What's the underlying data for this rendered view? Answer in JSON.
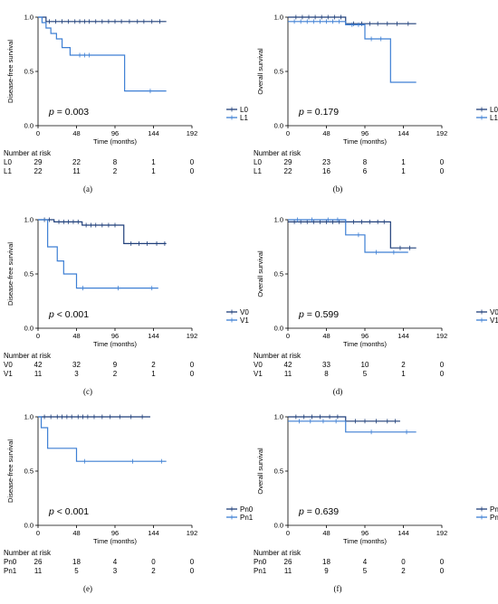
{
  "chart_data": [
    {
      "id": "a",
      "type": "line",
      "panel_label": "(a)",
      "ylabel": "Disease-free survival",
      "xlabel": "Time (months)",
      "xticks": [
        0,
        48,
        96,
        144,
        192
      ],
      "yticks": [
        0.0,
        0.5,
        1.0
      ],
      "xlim": [
        0,
        192
      ],
      "ylim": [
        0,
        1.0
      ],
      "p_prefix": "p",
      "p_text": " = 0.003",
      "legend_placement": "right",
      "series": [
        {
          "name": "L0",
          "color": "#1f3f7a",
          "x": [
            0,
            10,
            10,
            160
          ],
          "y": [
            1.0,
            1.0,
            0.96,
            0.96
          ],
          "censor_x": [
            14,
            22,
            30,
            38,
            46,
            52,
            58,
            64,
            72,
            80,
            88,
            96,
            104,
            114,
            124,
            132,
            142,
            152
          ]
        },
        {
          "name": "L1",
          "color": "#3d7fd4",
          "x": [
            0,
            5,
            5,
            10,
            10,
            16,
            16,
            23,
            23,
            30,
            30,
            40,
            40,
            48,
            48,
            108,
            108,
            160
          ],
          "y": [
            1.0,
            1.0,
            0.95,
            0.95,
            0.9,
            0.9,
            0.85,
            0.85,
            0.8,
            0.8,
            0.72,
            0.72,
            0.65,
            0.65,
            0.65,
            0.65,
            0.32,
            0.32
          ],
          "censor_x": [
            52,
            58,
            64,
            140
          ]
        }
      ],
      "risk": {
        "title": "Number at risk",
        "x": [
          0,
          48,
          96,
          144,
          192
        ],
        "rows": [
          {
            "label": "L0",
            "values": [
              "29",
              "22",
              "8",
              "1",
              "0"
            ]
          },
          {
            "label": "L1",
            "values": [
              "22",
              "11",
              "2",
              "1",
              "0"
            ]
          }
        ]
      }
    },
    {
      "id": "b",
      "type": "line",
      "panel_label": "(b)",
      "ylabel": "Overall survival",
      "xlabel": "Time (months)",
      "xticks": [
        0,
        48,
        96,
        144,
        192
      ],
      "yticks": [
        0.0,
        0.5,
        1.0
      ],
      "xlim": [
        0,
        192
      ],
      "ylim": [
        0,
        1.0
      ],
      "p_prefix": "p",
      "p_text": " = 0.179",
      "legend_placement": "right",
      "series": [
        {
          "name": "L0",
          "color": "#1f3f7a",
          "x": [
            0,
            72,
            72,
            160
          ],
          "y": [
            1.0,
            1.0,
            0.94,
            0.94
          ],
          "censor_x": [
            10,
            18,
            26,
            34,
            42,
            50,
            58,
            66,
            82,
            92,
            102,
            112,
            124,
            136,
            150
          ]
        },
        {
          "name": "L1",
          "color": "#3d7fd4",
          "x": [
            0,
            72,
            72,
            96,
            96,
            128,
            128,
            160
          ],
          "y": [
            0.96,
            0.96,
            0.93,
            0.93,
            0.8,
            0.8,
            0.4,
            0.4
          ],
          "censor_x": [
            8,
            16,
            24,
            32,
            40,
            48,
            56,
            64,
            80,
            88,
            104,
            116
          ]
        }
      ],
      "risk": {
        "title": "Number at risk",
        "x": [
          0,
          48,
          96,
          144,
          192
        ],
        "rows": [
          {
            "label": "L0",
            "values": [
              "29",
              "23",
              "8",
              "1",
              "0"
            ]
          },
          {
            "label": "L1",
            "values": [
              "22",
              "16",
              "6",
              "1",
              "0"
            ]
          }
        ]
      }
    },
    {
      "id": "c",
      "type": "line",
      "panel_label": "(c)",
      "ylabel": "Disease-free survival",
      "xlabel": "Time (months)",
      "xticks": [
        0,
        48,
        96,
        144,
        192
      ],
      "yticks": [
        0.0,
        0.5,
        1.0
      ],
      "xlim": [
        0,
        192
      ],
      "ylim": [
        0,
        1.0
      ],
      "p_prefix": "p",
      "p_text": " < 0.001",
      "legend_placement": "right",
      "series": [
        {
          "name": "V0",
          "color": "#1f3f7a",
          "x": [
            0,
            20,
            20,
            55,
            55,
            107,
            107,
            160
          ],
          "y": [
            1.0,
            1.0,
            0.98,
            0.98,
            0.95,
            0.95,
            0.78,
            0.78
          ],
          "censor_x": [
            8,
            14,
            26,
            32,
            38,
            44,
            50,
            60,
            66,
            72,
            80,
            88,
            96,
            116,
            126,
            136,
            148,
            158
          ]
        },
        {
          "name": "V1",
          "color": "#3d7fd4",
          "x": [
            0,
            12,
            12,
            24,
            24,
            32,
            32,
            48,
            48,
            150
          ],
          "y": [
            1.0,
            1.0,
            0.75,
            0.75,
            0.62,
            0.62,
            0.5,
            0.5,
            0.37,
            0.37
          ],
          "censor_x": [
            56,
            100,
            142
          ]
        }
      ],
      "risk": {
        "title": "Number at risk",
        "x": [
          0,
          48,
          96,
          144,
          192
        ],
        "rows": [
          {
            "label": "V0",
            "values": [
              "42",
              "32",
              "9",
              "2",
              "0"
            ]
          },
          {
            "label": "V1",
            "values": [
              "11",
              "3",
              "2",
              "1",
              "0"
            ]
          }
        ]
      }
    },
    {
      "id": "d",
      "type": "line",
      "panel_label": "(d)",
      "ylabel": "Overall survival",
      "xlabel": "Time (months)",
      "xticks": [
        0,
        48,
        96,
        144,
        192
      ],
      "yticks": [
        0.0,
        0.5,
        1.0
      ],
      "xlim": [
        0,
        192
      ],
      "ylim": [
        0,
        1.0
      ],
      "p_prefix": "p",
      "p_text": " = 0.599",
      "legend_placement": "right",
      "series": [
        {
          "name": "V0",
          "color": "#1f3f7a",
          "x": [
            0,
            128,
            128,
            160
          ],
          "y": [
            0.98,
            0.98,
            0.74,
            0.74
          ],
          "censor_x": [
            8,
            16,
            24,
            32,
            40,
            48,
            56,
            64,
            72,
            82,
            92,
            102,
            112,
            120,
            140,
            152
          ]
        },
        {
          "name": "V1",
          "color": "#3d7fd4",
          "x": [
            0,
            72,
            72,
            96,
            96,
            150
          ],
          "y": [
            1.0,
            1.0,
            0.86,
            0.86,
            0.7,
            0.7
          ],
          "censor_x": [
            12,
            30,
            50,
            62,
            88,
            110,
            132
          ]
        }
      ],
      "risk": {
        "title": "Number at risk",
        "x": [
          0,
          48,
          96,
          144,
          192
        ],
        "rows": [
          {
            "label": "V0",
            "values": [
              "42",
              "33",
              "10",
              "2",
              "0"
            ]
          },
          {
            "label": "V1",
            "values": [
              "11",
              "8",
              "5",
              "1",
              "0"
            ]
          }
        ]
      }
    },
    {
      "id": "e",
      "type": "line",
      "panel_label": "(e)",
      "ylabel": "Disease-free survival",
      "xlabel": "Time (months)",
      "xticks": [
        0,
        48,
        96,
        144,
        192
      ],
      "yticks": [
        0.0,
        0.5,
        1.0
      ],
      "xlim": [
        0,
        192
      ],
      "ylim": [
        0,
        1.0
      ],
      "p_prefix": "p",
      "p_text": " < 0.001",
      "legend_placement": "right",
      "series": [
        {
          "name": "Pn0",
          "color": "#1f3f7a",
          "x": [
            0,
            140
          ],
          "y": [
            1.0,
            1.0
          ],
          "censor_x": [
            8,
            16,
            24,
            30,
            36,
            42,
            50,
            56,
            62,
            70,
            80,
            90,
            102,
            116,
            130
          ]
        },
        {
          "name": "Pn1",
          "color": "#3d7fd4",
          "x": [
            0,
            4,
            4,
            12,
            12,
            48,
            48,
            160
          ],
          "y": [
            1.0,
            1.0,
            0.9,
            0.9,
            0.71,
            0.71,
            0.59,
            0.59
          ],
          "censor_x": [
            58,
            118,
            154
          ]
        }
      ],
      "risk": {
        "title": "Number at risk",
        "x": [
          0,
          48,
          96,
          144,
          192
        ],
        "rows": [
          {
            "label": "Pn0",
            "values": [
              "26",
              "18",
              "4",
              "0",
              "0"
            ]
          },
          {
            "label": "Pn1",
            "values": [
              "11",
              "5",
              "3",
              "2",
              "0"
            ]
          }
        ]
      }
    },
    {
      "id": "f",
      "type": "line",
      "panel_label": "(f)",
      "ylabel": "Overall survival",
      "xlabel": "Time (months)",
      "xticks": [
        0,
        48,
        96,
        144,
        192
      ],
      "yticks": [
        0.0,
        0.5,
        1.0
      ],
      "xlim": [
        0,
        192
      ],
      "ylim": [
        0,
        1.0
      ],
      "p_prefix": "p",
      "p_text": " = 0.639",
      "legend_placement": "right",
      "series": [
        {
          "name": "Pn0",
          "color": "#1f3f7a",
          "x": [
            0,
            72,
            72,
            140
          ],
          "y": [
            1.0,
            1.0,
            0.96,
            0.96
          ],
          "censor_x": [
            10,
            20,
            30,
            40,
            52,
            62,
            84,
            96,
            110,
            124,
            134
          ]
        },
        {
          "name": "Pn1",
          "color": "#3d7fd4",
          "x": [
            0,
            72,
            72,
            160
          ],
          "y": [
            0.96,
            0.96,
            0.86,
            0.86
          ],
          "censor_x": [
            14,
            28,
            44,
            60,
            104,
            148
          ]
        }
      ],
      "risk": {
        "title": "Number at risk",
        "x": [
          0,
          48,
          96,
          144,
          192
        ],
        "rows": [
          {
            "label": "Pn0",
            "values": [
              "26",
              "18",
              "4",
              "0",
              "0"
            ]
          },
          {
            "label": "Pn1",
            "values": [
              "11",
              "9",
              "5",
              "2",
              "0"
            ]
          }
        ]
      }
    }
  ]
}
